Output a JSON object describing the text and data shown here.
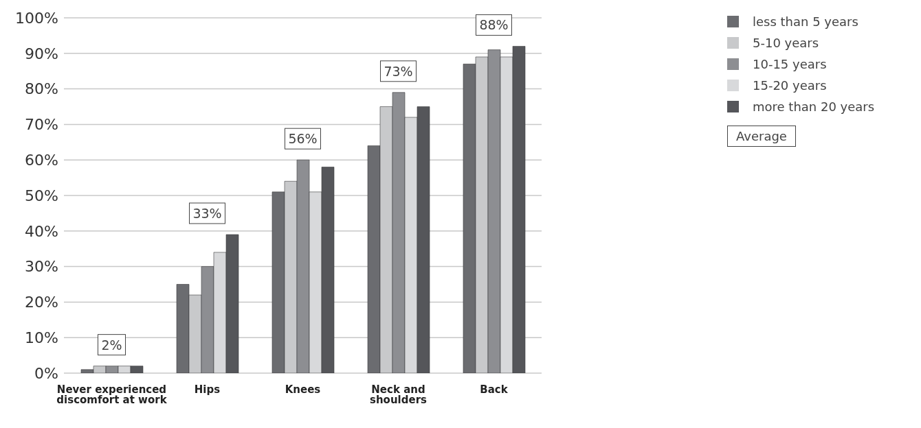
{
  "chart_data": {
    "type": "bar",
    "categories": [
      "Never experienced discomfort at work",
      "Hips",
      "Knees",
      "Neck and shoulders",
      "Back"
    ],
    "series": [
      {
        "name": "less than 5 years",
        "color": "#6b6c70",
        "values": [
          1,
          25,
          51,
          64,
          87
        ]
      },
      {
        "name": "5-10 years",
        "color": "#c8c9cb",
        "values": [
          2,
          22,
          54,
          75,
          89
        ]
      },
      {
        "name": "10-15 years",
        "color": "#8d8e92",
        "values": [
          2,
          30,
          60,
          79,
          91
        ]
      },
      {
        "name": "15-20 years",
        "color": "#d8d9db",
        "values": [
          2,
          34,
          51,
          72,
          89
        ]
      },
      {
        "name": "more than 20 years",
        "color": "#55565a",
        "values": [
          2,
          39,
          58,
          75,
          92
        ]
      }
    ],
    "ylim": [
      0,
      100
    ],
    "yticks": [
      {
        "value": 0,
        "label": "0%"
      },
      {
        "value": 10,
        "label": "10%"
      },
      {
        "value": 20,
        "label": "20%"
      },
      {
        "value": 30,
        "label": "30%"
      },
      {
        "value": 40,
        "label": "40%"
      },
      {
        "value": 50,
        "label": "50%"
      },
      {
        "value": 60,
        "label": "60%"
      },
      {
        "value": 70,
        "label": "70%"
      },
      {
        "value": 80,
        "label": "80%"
      },
      {
        "value": 90,
        "label": "90%"
      },
      {
        "value": 100,
        "label": "100%"
      }
    ],
    "grid": "y",
    "legend": "top right",
    "annotations": [
      "2%",
      "33%",
      "56%",
      "73%",
      "88%",
      "Average"
    ]
  }
}
